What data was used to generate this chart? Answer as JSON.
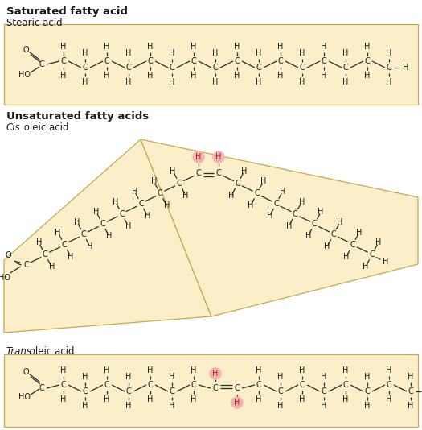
{
  "bg_color": "#faefc8",
  "box_edge_color": "#c8a850",
  "title1": "Saturated fatty acid",
  "subtitle1": "Stearic acid",
  "title2": "Unsaturated fatty acids",
  "subtitle2_italic": "Cis",
  "subtitle2_rest": " oleic acid",
  "subtitle3_italic": "Trans",
  "subtitle3_rest": " oleic acid",
  "highlight_color": "#e87878",
  "highlight_bg": "#f5b0b0",
  "text_color": "#1a1a1a",
  "line_color": "#2a2a2a",
  "white": "#ffffff"
}
